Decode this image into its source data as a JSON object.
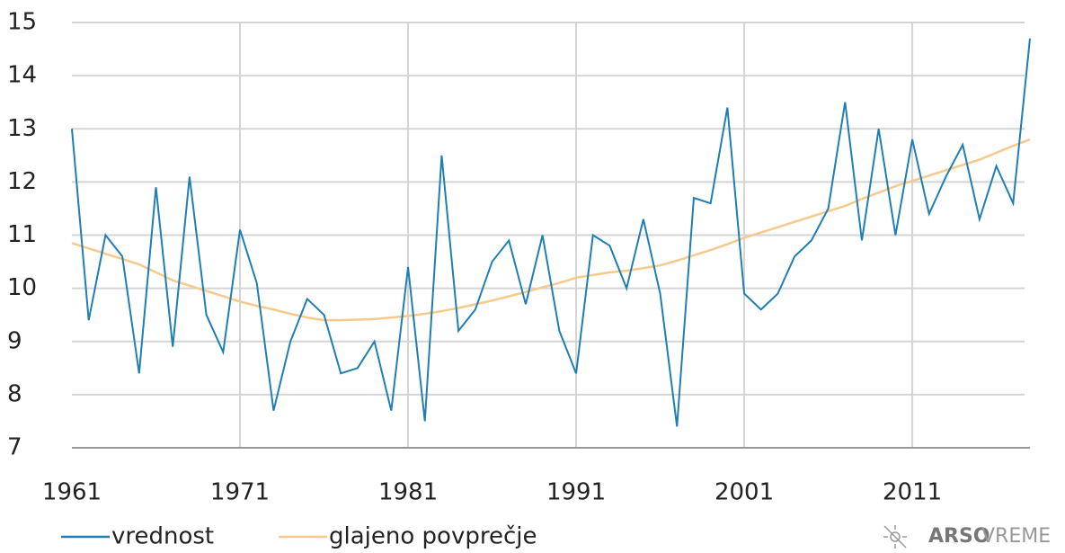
{
  "chart_data": {
    "type": "line",
    "x": [
      1961,
      1962,
      1963,
      1964,
      1965,
      1966,
      1967,
      1968,
      1969,
      1970,
      1971,
      1972,
      1973,
      1974,
      1975,
      1976,
      1977,
      1978,
      1979,
      1980,
      1981,
      1982,
      1983,
      1984,
      1985,
      1986,
      1987,
      1988,
      1989,
      1990,
      1991,
      1992,
      1993,
      1994,
      1995,
      1996,
      1997,
      1998,
      1999,
      2000,
      2001,
      2002,
      2003,
      2004,
      2005,
      2006,
      2007,
      2008,
      2009,
      2010,
      2011,
      2012,
      2013,
      2014,
      2015,
      2016,
      2017,
      2018
    ],
    "series": [
      {
        "name": "vrednost",
        "color": "#1f7fb4",
        "values": [
          13.0,
          9.4,
          11.0,
          10.6,
          8.4,
          11.9,
          8.9,
          12.1,
          9.5,
          8.8,
          11.1,
          10.1,
          7.7,
          9.0,
          9.8,
          9.5,
          8.4,
          8.5,
          9.0,
          7.7,
          10.4,
          7.5,
          12.5,
          9.2,
          9.6,
          10.5,
          10.9,
          9.7,
          11.0,
          9.2,
          8.4,
          11.0,
          10.8,
          10.0,
          11.3,
          9.9,
          7.4,
          11.7,
          11.6,
          13.4,
          9.9,
          9.6,
          9.9,
          10.6,
          10.9,
          11.5,
          13.5,
          10.9,
          13.0,
          11.0,
          12.8,
          11.4,
          12.1,
          12.7,
          11.3,
          12.3,
          11.6,
          14.7
        ]
      },
      {
        "name": "glajeno povprečje",
        "color": "#f6c98c",
        "values": [
          10.85,
          10.75,
          10.65,
          10.55,
          10.45,
          10.3,
          10.15,
          10.05,
          9.95,
          9.85,
          9.75,
          9.67,
          9.6,
          9.52,
          9.45,
          9.4,
          9.4,
          9.41,
          9.42,
          9.45,
          9.48,
          9.52,
          9.57,
          9.63,
          9.7,
          9.77,
          9.85,
          9.93,
          10.02,
          10.1,
          10.2,
          10.25,
          10.3,
          10.33,
          10.38,
          10.43,
          10.52,
          10.62,
          10.72,
          10.83,
          10.95,
          11.05,
          11.15,
          11.25,
          11.35,
          11.45,
          11.55,
          11.68,
          11.8,
          11.92,
          12.02,
          12.12,
          12.22,
          12.32,
          12.42,
          12.55,
          12.68,
          12.8
        ]
      }
    ],
    "xlim": [
      1961,
      2018
    ],
    "xticks": [
      1961,
      1971,
      1981,
      1991,
      2001,
      2011
    ],
    "ylim": [
      7,
      15
    ],
    "yticks": [
      7,
      8,
      9,
      10,
      11,
      12,
      13,
      14,
      15
    ],
    "grid": true
  },
  "branding": {
    "bold": "ARSO",
    "light": "VREME"
  }
}
